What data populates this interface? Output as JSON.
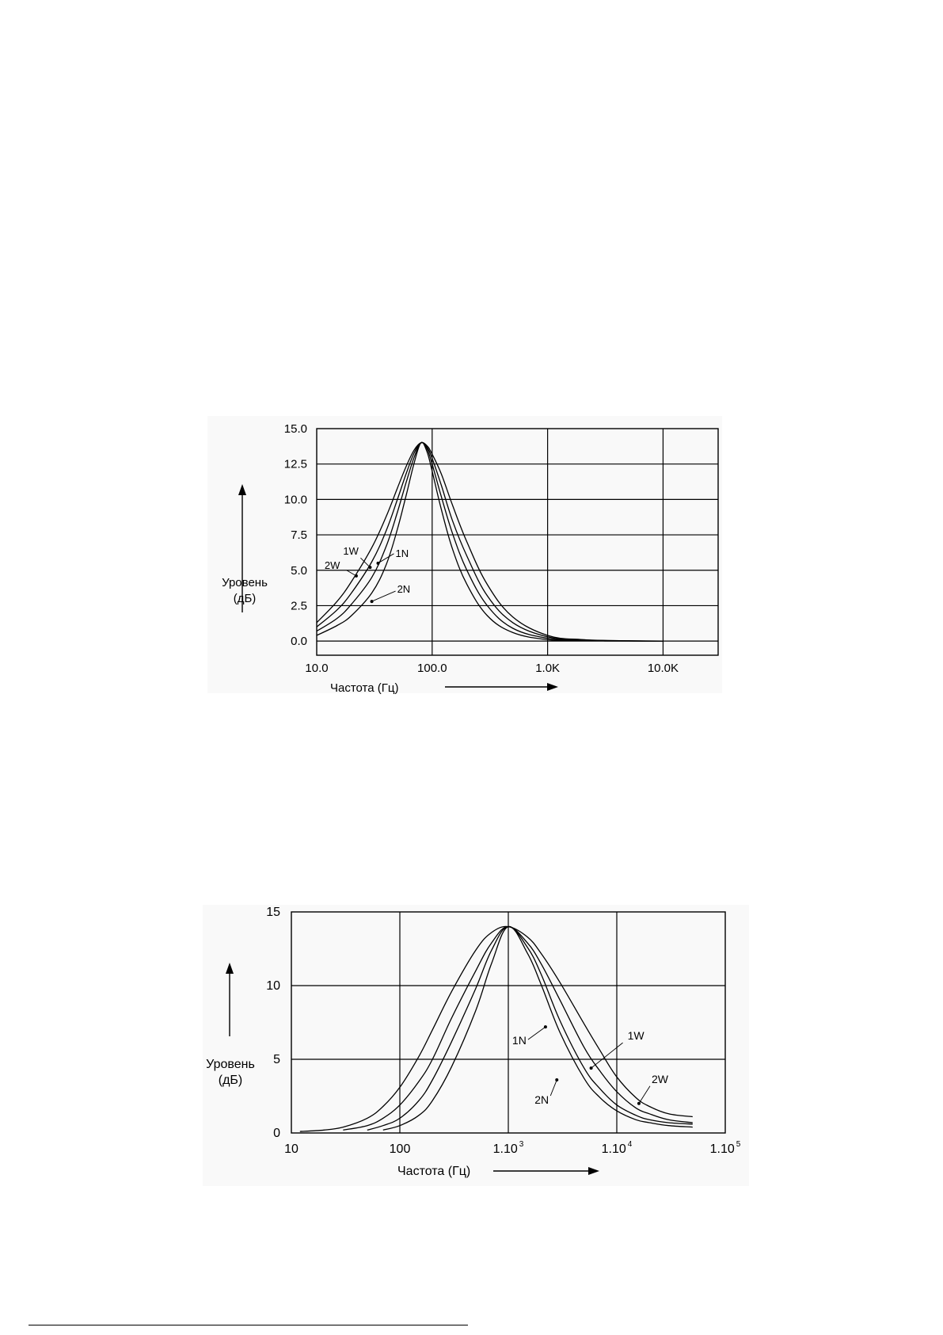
{
  "chart_data": [
    {
      "type": "line",
      "x_scale": "log",
      "xlim": [
        10,
        30000
      ],
      "ylim": [
        -1,
        15
      ],
      "grid": true,
      "x_ticks": [
        {
          "value": 10,
          "label": "10.0"
        },
        {
          "value": 100,
          "label": "100.0"
        },
        {
          "value": 1000,
          "label": "1.0K"
        },
        {
          "value": 10000,
          "label": "10.0K"
        }
      ],
      "y_ticks": [
        {
          "value": 0,
          "label": "0.0"
        },
        {
          "value": 2.5,
          "label": "2.5"
        },
        {
          "value": 5,
          "label": "5.0"
        },
        {
          "value": 7.5,
          "label": "7.5"
        },
        {
          "value": 10,
          "label": "10.0"
        },
        {
          "value": 12.5,
          "label": "12.5"
        },
        {
          "value": 15,
          "label": "15.0"
        }
      ],
      "xlabel": "Частота (Гц)",
      "ylabel_line1": "Уровень",
      "ylabel_line2": "(дБ)",
      "series": [
        {
          "name": "2W",
          "x": [
            10,
            15,
            20,
            30,
            40,
            50,
            60,
            70,
            80,
            90,
            100,
            120,
            150,
            200,
            300,
            500,
            1000,
            2000,
            5000,
            10000
          ],
          "y": [
            1.3,
            2.8,
            4.2,
            6.6,
            8.8,
            10.8,
            12.4,
            13.5,
            14.0,
            13.8,
            13.2,
            11.8,
            9.6,
            7.0,
            4.0,
            1.7,
            0.4,
            0.1,
            0.02,
            0.0
          ]
        },
        {
          "name": "1W",
          "x": [
            10,
            15,
            20,
            30,
            40,
            50,
            60,
            70,
            80,
            90,
            100,
            120,
            150,
            200,
            300,
            500,
            1000,
            2000,
            5000,
            10000
          ],
          "y": [
            1.0,
            2.2,
            3.4,
            5.6,
            7.8,
            10.0,
            11.9,
            13.3,
            14.0,
            13.7,
            12.9,
            11.0,
            8.5,
            6.0,
            3.2,
            1.3,
            0.3,
            0.08,
            0.01,
            0.0
          ]
        },
        {
          "name": "1N",
          "x": [
            10,
            15,
            20,
            30,
            40,
            50,
            60,
            70,
            80,
            90,
            100,
            120,
            150,
            200,
            300,
            500,
            1000,
            2000,
            5000,
            10000
          ],
          "y": [
            0.7,
            1.6,
            2.6,
            4.5,
            6.7,
            9.1,
            11.3,
            13.0,
            14.0,
            13.6,
            12.5,
            10.2,
            7.6,
            5.0,
            2.5,
            0.9,
            0.2,
            0.05,
            0.01,
            0.0
          ]
        },
        {
          "name": "2N",
          "x": [
            10,
            15,
            20,
            30,
            40,
            50,
            60,
            70,
            80,
            90,
            100,
            120,
            150,
            200,
            300,
            500,
            1000,
            2000,
            5000,
            10000
          ],
          "y": [
            0.4,
            1.1,
            1.8,
            3.4,
            5.4,
            7.9,
            10.4,
            12.6,
            14.0,
            13.4,
            12.0,
            9.3,
            6.5,
            4.0,
            1.8,
            0.6,
            0.1,
            0.03,
            0.0,
            0.0
          ]
        }
      ],
      "annotations": [
        {
          "text": "2W",
          "x": 22,
          "y": 4.6
        },
        {
          "text": "1W",
          "x": 29,
          "y": 5.2
        },
        {
          "text": "1N",
          "x": 34,
          "y": 5.5
        },
        {
          "text": "2N",
          "x": 30,
          "y": 2.8
        }
      ]
    },
    {
      "type": "line",
      "x_scale": "log",
      "xlim": [
        10,
        100000
      ],
      "ylim": [
        0,
        15
      ],
      "grid": true,
      "x_ticks": [
        {
          "value": 10,
          "label": "10",
          "sup": ""
        },
        {
          "value": 100,
          "label": "100",
          "sup": ""
        },
        {
          "value": 1000,
          "label": "1.10",
          "sup": "3"
        },
        {
          "value": 10000,
          "label": "1.10",
          "sup": "4"
        },
        {
          "value": 100000,
          "label": "1.10",
          "sup": "5"
        }
      ],
      "y_ticks": [
        {
          "value": 0,
          "label": "0"
        },
        {
          "value": 5,
          "label": "5"
        },
        {
          "value": 10,
          "label": "10"
        },
        {
          "value": 15,
          "label": "15"
        }
      ],
      "xlabel": "Частота (Гц)",
      "ylabel_line1": "Уровень",
      "ylabel_line2": "(дБ)",
      "series": [
        {
          "name": "2W",
          "x": [
            12,
            20,
            30,
            50,
            70,
            100,
            150,
            200,
            300,
            500,
            700,
            1000,
            1500,
            2000,
            3000,
            5000,
            7000,
            10000,
            15000,
            20000,
            30000,
            50000
          ],
          "y": [
            0.1,
            0.2,
            0.4,
            1.0,
            1.8,
            3.1,
            5.2,
            7.0,
            9.6,
            12.4,
            13.6,
            14.0,
            13.3,
            12.2,
            10.2,
            7.4,
            5.6,
            3.8,
            2.4,
            1.8,
            1.3,
            1.1
          ]
        },
        {
          "name": "1W",
          "x": [
            30,
            50,
            70,
            100,
            150,
            200,
            300,
            500,
            700,
            1000,
            1500,
            2000,
            3000,
            5000,
            7000,
            10000,
            15000,
            20000,
            30000,
            50000
          ],
          "y": [
            0.2,
            0.5,
            1.0,
            1.9,
            3.5,
            5.0,
            7.8,
            11.0,
            12.9,
            14.0,
            12.9,
            11.5,
            9.0,
            5.8,
            4.2,
            2.8,
            1.7,
            1.3,
            0.9,
            0.7
          ]
        },
        {
          "name": "1N",
          "x": [
            50,
            70,
            100,
            150,
            200,
            300,
            500,
            700,
            1000,
            1500,
            2000,
            3000,
            5000,
            7000,
            10000,
            15000,
            20000,
            30000,
            50000
          ],
          "y": [
            0.2,
            0.5,
            1.0,
            2.2,
            3.6,
            6.2,
            9.8,
            12.4,
            14.0,
            12.6,
            10.8,
            7.6,
            4.4,
            3.0,
            1.9,
            1.2,
            0.9,
            0.7,
            0.6
          ]
        },
        {
          "name": "2N",
          "x": [
            70,
            100,
            150,
            200,
            300,
            500,
            700,
            1000,
            1500,
            2000,
            3000,
            5000,
            7000,
            10000,
            15000,
            20000,
            30000,
            50000
          ],
          "y": [
            0.2,
            0.5,
            1.2,
            2.2,
            4.5,
            8.3,
            11.5,
            14.0,
            12.2,
            10.1,
            6.8,
            3.7,
            2.4,
            1.5,
            0.9,
            0.7,
            0.5,
            0.4
          ]
        }
      ],
      "annotations": [
        {
          "text": "1N",
          "x": 2200,
          "y": 7.2
        },
        {
          "text": "1W",
          "x": 5800,
          "y": 4.4
        },
        {
          "text": "2W",
          "x": 16000,
          "y": 2.0
        },
        {
          "text": "2N",
          "x": 2800,
          "y": 3.6
        }
      ]
    }
  ]
}
